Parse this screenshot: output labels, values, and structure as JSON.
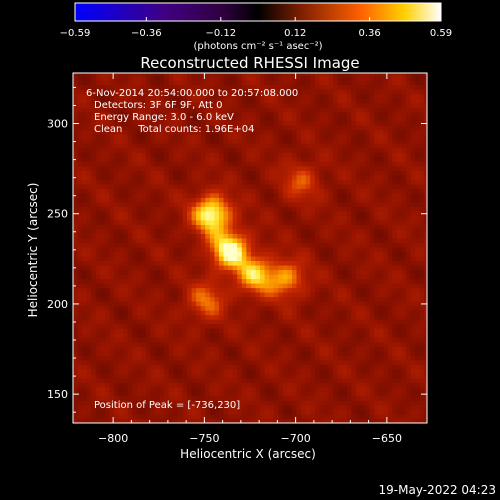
{
  "colorbar": {
    "ticks": [
      "-0.59",
      "-0.36",
      "-0.12",
      "0.12",
      "0.36",
      "0.59"
    ],
    "values": [
      -0.59,
      -0.36,
      -0.12,
      0.12,
      0.36,
      0.59
    ],
    "units": "(photons cm⁻² s⁻¹ asec⁻²)"
  },
  "chart_data": {
    "type": "heatmap",
    "title": "Reconstructed RHESSI Image",
    "xlabel": "Heliocentric X (arcsec)",
    "ylabel": "Heliocentric Y (arcsec)",
    "xlim": [
      -822,
      -628
    ],
    "ylim": [
      134,
      328
    ],
    "xticks": [
      -800,
      -750,
      -700,
      -650
    ],
    "yticks": [
      150,
      200,
      250,
      300
    ],
    "xtick_labels": [
      "−800",
      "−750",
      "−700",
      "−650"
    ],
    "ytick_labels": [
      "150",
      "200",
      "250",
      "300"
    ],
    "colormap": "rhessi-hot",
    "value_range": [
      -0.59,
      0.59
    ],
    "sources": [
      {
        "x": -746,
        "y": 250,
        "intensity": 0.59
      },
      {
        "x": -736,
        "y": 230,
        "intensity": 0.59
      },
      {
        "x": -722,
        "y": 216,
        "intensity": 0.42
      },
      {
        "x": -705,
        "y": 214,
        "intensity": 0.36
      },
      {
        "x": -749,
        "y": 202,
        "intensity": 0.3
      },
      {
        "x": -697,
        "y": 268,
        "intensity": 0.25
      }
    ],
    "peak_position": [
      -736,
      230
    ],
    "annotations": [
      "6-Nov-2014 20:54:00.000 to 20:57:08.000",
      "Detectors: 3F 6F 9F, Att 0",
      "Energy Range: 3.0 - 6.0 keV",
      "Clean     Total counts: 1.96E+04",
      "Position of Peak = [-736,230]"
    ]
  },
  "footer": {
    "timestamp": "19-May-2022 04:23"
  }
}
